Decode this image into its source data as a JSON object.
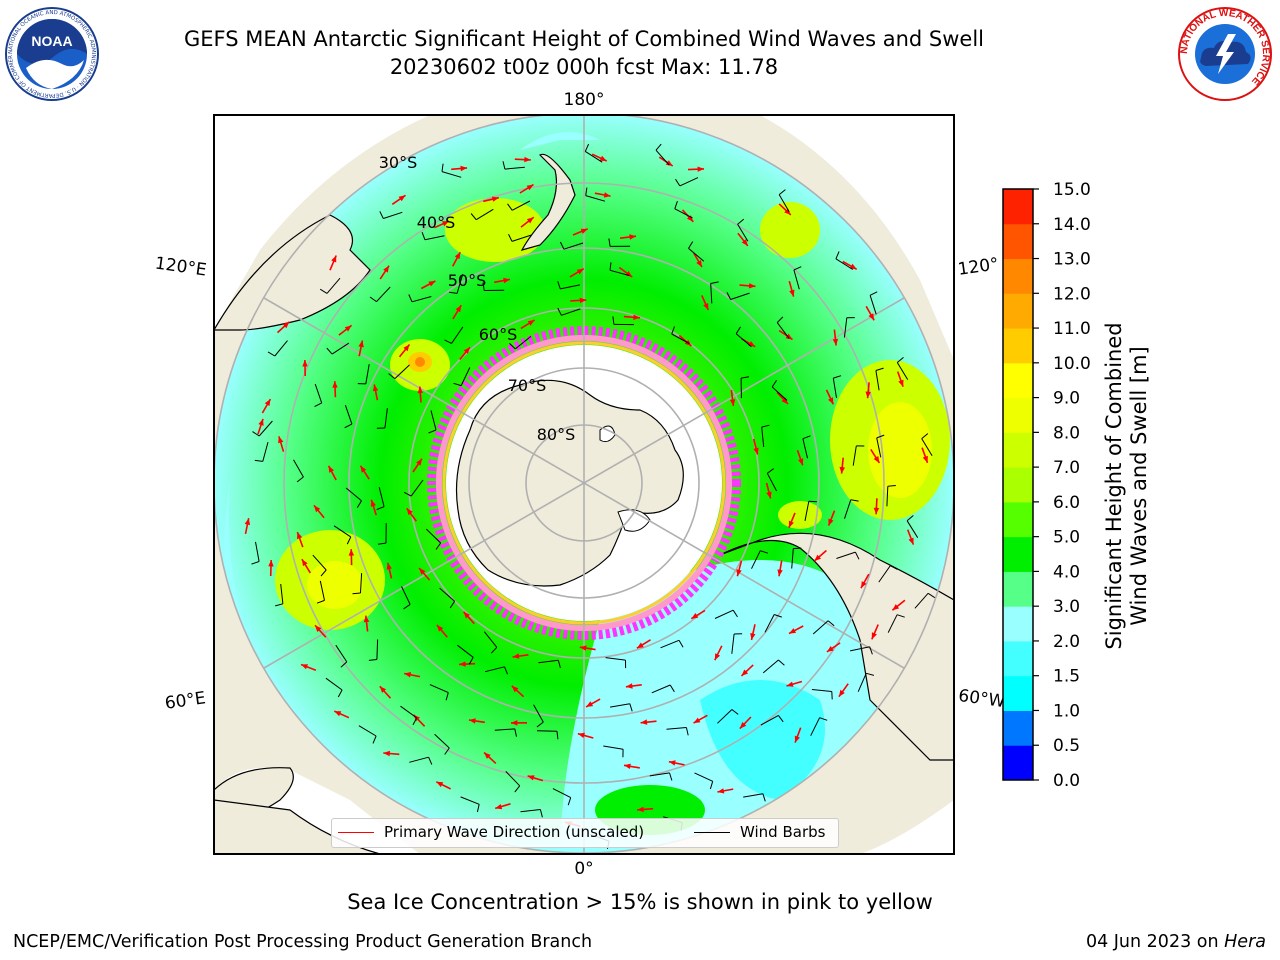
{
  "header": {
    "title_line1": "GEFS MEAN Antarctic Significant Height of Combined Wind Waves and Swell",
    "title_line2": "20230602 t00z 000h fcst   Max: 11.78"
  },
  "logos": {
    "left": {
      "icon": "noaa-logo",
      "text": "NOAA",
      "ring_text": "NATIONAL OCEANIC AND ATMOSPHERIC ADMINISTRATION · U.S. DEPARTMENT OF COMMERCE"
    },
    "right": {
      "icon": "nws-logo",
      "ring_text": "NATIONAL WEATHER SERVICE"
    }
  },
  "map": {
    "projection": "south-polar-stereographic",
    "variable": "Significant Height of Combined Wind Waves and Swell",
    "units": "m",
    "max_value": 11.78,
    "longitude_labels": {
      "top": "180°",
      "bottom": "0°",
      "upper_left": "120°E",
      "lower_left": "60°E",
      "upper_right": "120°",
      "lower_right": "60°W"
    },
    "latitude_labels": [
      "30°S",
      "40°S",
      "50°S",
      "60°S",
      "70°S",
      "80°S"
    ],
    "land_color": "#efecdc",
    "ice_shelf_color": "#ffffff",
    "sea_ice_colors": [
      "#ff33ff",
      "#ff99cc",
      "#ffcc33",
      "#ffff66"
    ],
    "wave_direction_color": "#ff0000",
    "wind_barb_color": "#000000"
  },
  "legend": {
    "items": [
      {
        "label": "Primary Wave Direction (unscaled)",
        "color": "#ff0000"
      },
      {
        "label": "Wind Barbs",
        "color": "#000000"
      }
    ]
  },
  "colorbar": {
    "title_line1": "Significant Height of Combined",
    "title_line2": "Wind Waves and Swell [m]",
    "ticks": [
      "0.0",
      "0.5",
      "1.0",
      "1.5",
      "2.0",
      "3.0",
      "4.0",
      "5.0",
      "6.0",
      "7.0",
      "8.0",
      "9.0",
      "10.0",
      "11.0",
      "12.0",
      "13.0",
      "14.0",
      "15.0"
    ],
    "colors": [
      "#0000ff",
      "#0077ff",
      "#00ffff",
      "#44ffff",
      "#99ffff",
      "#55ff88",
      "#00ee00",
      "#55ff00",
      "#aaff00",
      "#ccff00",
      "#eeff00",
      "#ffff00",
      "#ffcc00",
      "#ffaa00",
      "#ff8800",
      "#ff5500",
      "#ff2200"
    ]
  },
  "footer": {
    "note": "Sea Ice Concentration > 15% is shown in pink to yellow",
    "credit_left": "NCEP/EMC/Verification Post Processing Product Generation Branch",
    "credit_right_prefix": "04 Jun 2023 on ",
    "credit_right_machine": "Hera"
  }
}
